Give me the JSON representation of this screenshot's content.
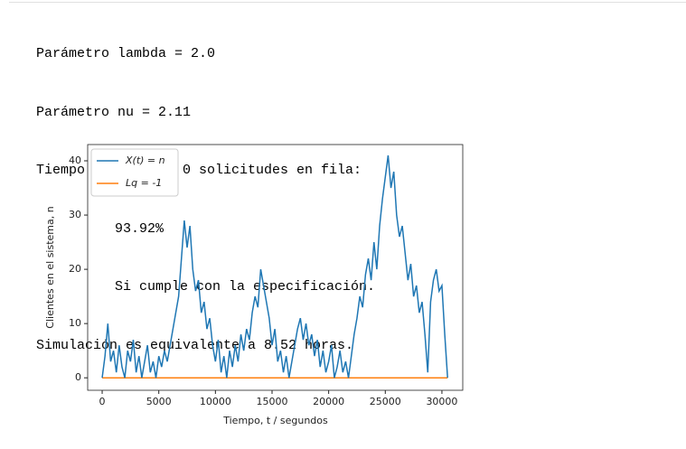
{
  "output": [
    "Parámetro lambda = 2.0",
    "Parámetro nu = 2.11",
    "Tiempo con más de 0 solicitudes en fila:",
    "93.92%",
    "Si cumple con la especificación.",
    "Simulación es equivalente a 8.52 horas."
  ],
  "chart_data": {
    "type": "line",
    "x_label": "Tiempo, t / segundos",
    "y_label": "Clientes en el sistema, n",
    "xlim": [
      -1280,
      31840
    ],
    "ylim": [
      -2.3,
      43
    ],
    "xticks": [
      0,
      5000,
      10000,
      15000,
      20000,
      25000,
      30000
    ],
    "yticks": [
      0,
      10,
      20,
      30,
      40
    ],
    "legend": "upper left",
    "series": [
      {
        "name": "X(t) = n",
        "color": "#1f77b4",
        "x": [
          0,
          250,
          500,
          750,
          1000,
          1250,
          1500,
          1750,
          2000,
          2250,
          2500,
          2750,
          3000,
          3250,
          3500,
          3750,
          4000,
          4250,
          4500,
          4750,
          5000,
          5250,
          5500,
          5750,
          6000,
          6250,
          6500,
          6750,
          7000,
          7250,
          7500,
          7750,
          8000,
          8250,
          8500,
          8750,
          9000,
          9250,
          9500,
          9750,
          10000,
          10250,
          10500,
          10750,
          11000,
          11250,
          11500,
          11750,
          12000,
          12250,
          12500,
          12750,
          13000,
          13250,
          13500,
          13750,
          14000,
          14250,
          14500,
          14750,
          15000,
          15250,
          15500,
          15750,
          16000,
          16250,
          16500,
          16750,
          17000,
          17250,
          17500,
          17750,
          18000,
          18250,
          18500,
          18750,
          19000,
          19250,
          19500,
          19750,
          20000,
          20250,
          20500,
          20750,
          21000,
          21250,
          21500,
          21750,
          22000,
          22250,
          22500,
          22750,
          23000,
          23250,
          23500,
          23750,
          24000,
          24250,
          24500,
          24750,
          25000,
          25250,
          25500,
          25750,
          26000,
          26250,
          26500,
          26750,
          27000,
          27250,
          27500,
          27750,
          28000,
          28250,
          28500,
          28750,
          29000,
          29250,
          29500,
          29750,
          30000,
          30250,
          30500
        ],
        "values": [
          0,
          4,
          10,
          3,
          5,
          1,
          6,
          2,
          0,
          5,
          3,
          7,
          1,
          4,
          0,
          3,
          6,
          1,
          3,
          0,
          4,
          2,
          5,
          3,
          6,
          9,
          12,
          15,
          22,
          29,
          24,
          28,
          20,
          16,
          18,
          12,
          14,
          9,
          11,
          6,
          3,
          7,
          1,
          4,
          0,
          5,
          2,
          6,
          3,
          8,
          5,
          9,
          7,
          12,
          15,
          13,
          20,
          17,
          14,
          11,
          6,
          9,
          3,
          5,
          1,
          4,
          0,
          3,
          6,
          9,
          11,
          7,
          10,
          6,
          8,
          4,
          7,
          2,
          5,
          1,
          3,
          6,
          0,
          2,
          5,
          1,
          3,
          0,
          4,
          8,
          11,
          15,
          13,
          19,
          22,
          18,
          25,
          20,
          28,
          33,
          37,
          41,
          35,
          38,
          30,
          26,
          28,
          23,
          18,
          21,
          15,
          17,
          12,
          14,
          8,
          1,
          14,
          18,
          20,
          16,
          17,
          8,
          0
        ]
      },
      {
        "name": "Lq = -1",
        "color": "#ff7f0e",
        "x": [
          0,
          30500
        ],
        "values": [
          0,
          0
        ]
      }
    ]
  }
}
